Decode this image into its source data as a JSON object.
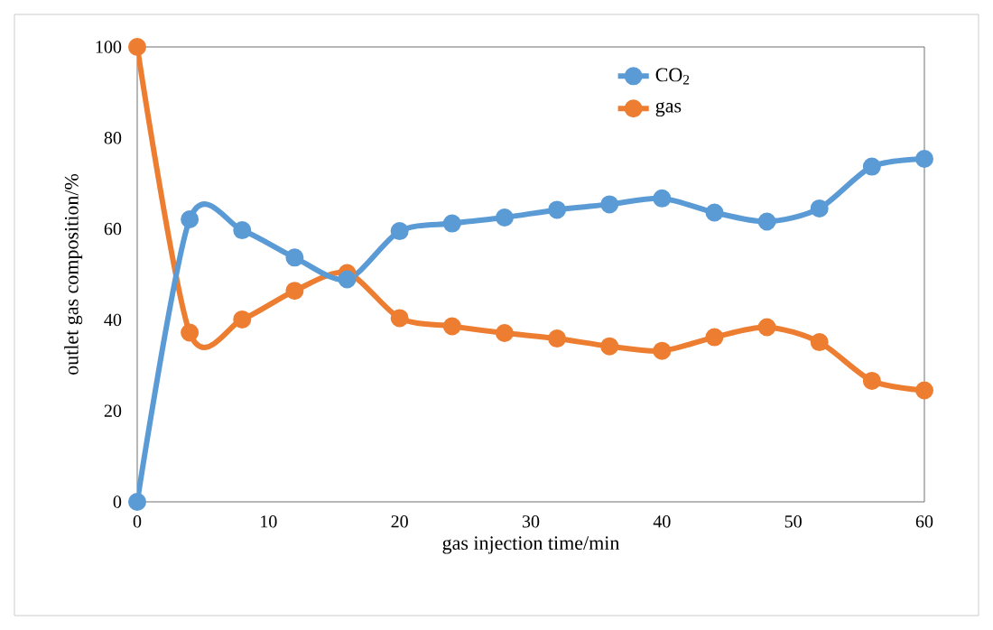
{
  "chart_data": {
    "type": "line",
    "xlabel": "gas injection time/min",
    "ylabel": "outlet gas composition/%",
    "x": [
      0,
      4,
      8,
      12,
      16,
      20,
      24,
      28,
      32,
      36,
      40,
      44,
      48,
      52,
      56,
      60
    ],
    "series": [
      {
        "name": "CO$_{2}$",
        "color": "#5b9bd5",
        "values": [
          0,
          62.1,
          59.7,
          53.7,
          48.9,
          59.5,
          61.2,
          62.5,
          64.2,
          65.4,
          66.7,
          63.6,
          61.6,
          64.5,
          73.7,
          75.4
        ]
      },
      {
        "name": "gas",
        "color": "#ed7d31",
        "values": [
          100,
          37.2,
          40.1,
          46.4,
          50.3,
          40.4,
          38.6,
          37.1,
          35.9,
          34.2,
          33.2,
          36.2,
          38.4,
          35.1,
          26.6,
          24.5
        ]
      }
    ],
    "xlim": [
      0,
      60
    ],
    "xticks": [
      0,
      10,
      20,
      30,
      40,
      50,
      60
    ],
    "ylim": [
      0,
      100
    ],
    "yticks": [
      0,
      20,
      40,
      60,
      80,
      100
    ],
    "grid": false,
    "legend": "top right",
    "marker": "circle",
    "line_style": "solid"
  }
}
